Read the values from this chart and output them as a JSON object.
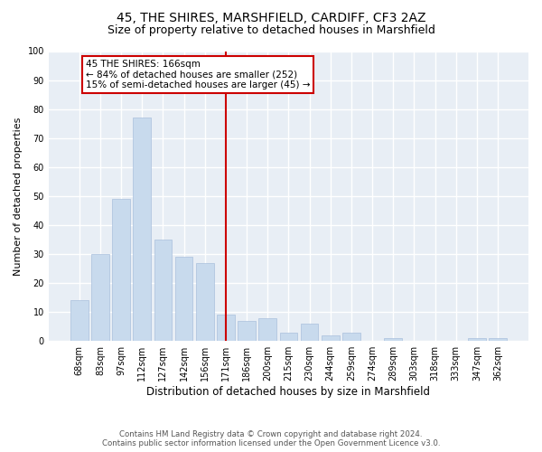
{
  "title": "45, THE SHIRES, MARSHFIELD, CARDIFF, CF3 2AZ",
  "subtitle": "Size of property relative to detached houses in Marshfield",
  "xlabel": "Distribution of detached houses by size in Marshfield",
  "ylabel": "Number of detached properties",
  "categories": [
    "68sqm",
    "83sqm",
    "97sqm",
    "112sqm",
    "127sqm",
    "142sqm",
    "156sqm",
    "171sqm",
    "186sqm",
    "200sqm",
    "215sqm",
    "230sqm",
    "244sqm",
    "259sqm",
    "274sqm",
    "289sqm",
    "303sqm",
    "318sqm",
    "333sqm",
    "347sqm",
    "362sqm"
  ],
  "values": [
    14,
    30,
    49,
    77,
    35,
    29,
    27,
    9,
    7,
    8,
    3,
    6,
    2,
    3,
    0,
    1,
    0,
    0,
    0,
    1,
    1
  ],
  "bar_color": "#c8daed",
  "bar_edge_color": "#aac0dd",
  "vline_idx": 7,
  "vline_color": "#cc0000",
  "ylim": [
    0,
    100
  ],
  "annotation_text": "45 THE SHIRES: 166sqm\n← 84% of detached houses are smaller (252)\n15% of semi-detached houses are larger (45) →",
  "annotation_box_color": "#cc0000",
  "footer_line1": "Contains HM Land Registry data © Crown copyright and database right 2024.",
  "footer_line2": "Contains public sector information licensed under the Open Government Licence v3.0.",
  "title_fontsize": 10,
  "subtitle_fontsize": 9,
  "xlabel_fontsize": 8.5,
  "ylabel_fontsize": 8,
  "tick_fontsize": 7,
  "annotation_fontsize": 7.5,
  "bg_color": "#e8eef5",
  "grid_color": "#ffffff"
}
